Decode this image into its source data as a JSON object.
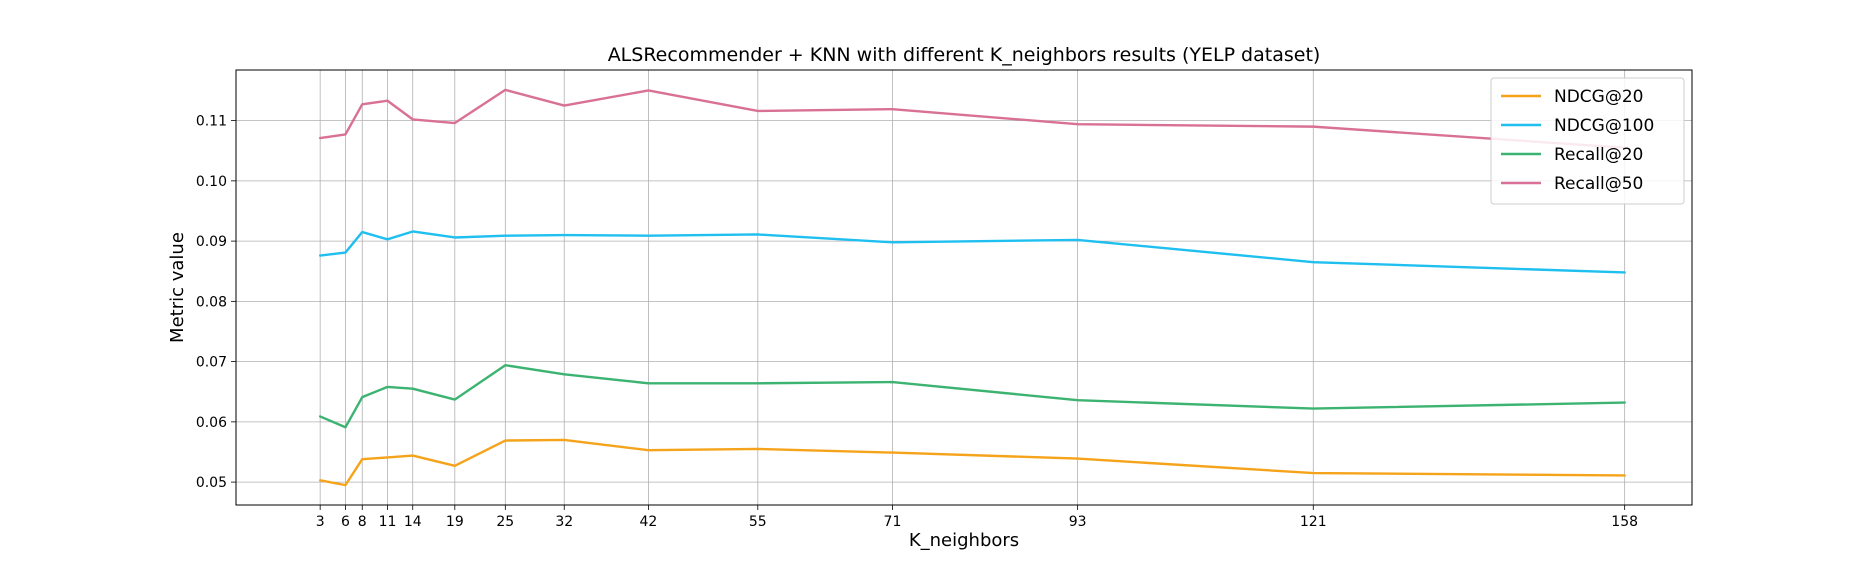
{
  "chart_data": {
    "type": "line",
    "title": "ALSRecommender + KNN with different K_neighbors results (YELP dataset)",
    "xlabel": "K_neighbors",
    "ylabel": "Metric value",
    "x": [
      3,
      6,
      8,
      11,
      14,
      19,
      25,
      32,
      42,
      55,
      71,
      93,
      121,
      158
    ],
    "xticks": [
      3,
      6,
      8,
      11,
      14,
      19,
      25,
      32,
      42,
      55,
      71,
      93,
      121,
      158
    ],
    "yticks": [
      0.05,
      0.06,
      0.07,
      0.08,
      0.09,
      0.1,
      0.11
    ],
    "ytick_labels": [
      "0.05",
      "0.06",
      "0.07",
      "0.08",
      "0.09",
      "0.10",
      "0.11"
    ],
    "xlim": [
      -7,
      166
    ],
    "ylim": [
      0.0462,
      0.1184
    ],
    "grid": true,
    "legend_position": "top-right",
    "series": [
      {
        "name": "NDCG@20",
        "color": "#f5a31a",
        "values": [
          0.0503,
          0.0495,
          0.0538,
          0.0541,
          0.0544,
          0.0527,
          0.0569,
          0.057,
          0.0553,
          0.0555,
          0.0549,
          0.0539,
          0.0515,
          0.0511
        ]
      },
      {
        "name": "NDCG@100",
        "color": "#1fbff0",
        "values": [
          0.0876,
          0.0881,
          0.0915,
          0.0903,
          0.0916,
          0.0906,
          0.0909,
          0.091,
          0.0909,
          0.0911,
          0.0898,
          0.0902,
          0.0865,
          0.0848
        ]
      },
      {
        "name": "Recall@20",
        "color": "#3cb371",
        "values": [
          0.0609,
          0.0591,
          0.0641,
          0.0658,
          0.0655,
          0.0637,
          0.0694,
          0.0679,
          0.0664,
          0.0664,
          0.0666,
          0.0636,
          0.0622,
          0.0632
        ]
      },
      {
        "name": "Recall@50",
        "color": "#d97095",
        "values": [
          0.1071,
          0.1077,
          0.1127,
          0.1133,
          0.1102,
          0.1096,
          0.1151,
          0.1125,
          0.115,
          0.1116,
          0.1119,
          0.1094,
          0.109,
          0.1055
        ]
      }
    ]
  }
}
